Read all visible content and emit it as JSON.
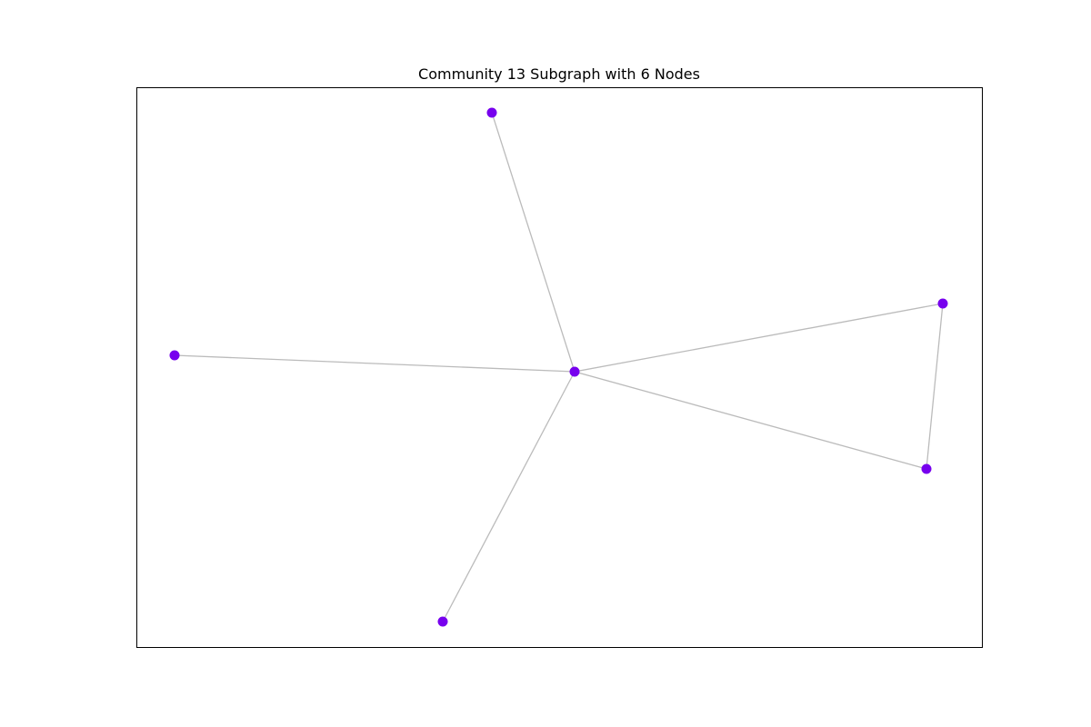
{
  "title": "Community 13 Subgraph with 6 Nodes",
  "colors": {
    "node": "#7700ee",
    "edge": "#bbbbbb",
    "frame": "#000000"
  },
  "graph": {
    "nodes": [
      {
        "id": "n0"
      },
      {
        "id": "n1"
      },
      {
        "id": "n2"
      },
      {
        "id": "n3"
      },
      {
        "id": "n4"
      },
      {
        "id": "n5"
      }
    ],
    "edges": [
      {
        "source": "n0",
        "target": "n1"
      },
      {
        "source": "n0",
        "target": "n2"
      },
      {
        "source": "n0",
        "target": "n3"
      },
      {
        "source": "n0",
        "target": "n4"
      },
      {
        "source": "n0",
        "target": "n5"
      },
      {
        "source": "n3",
        "target": "n4"
      }
    ]
  }
}
